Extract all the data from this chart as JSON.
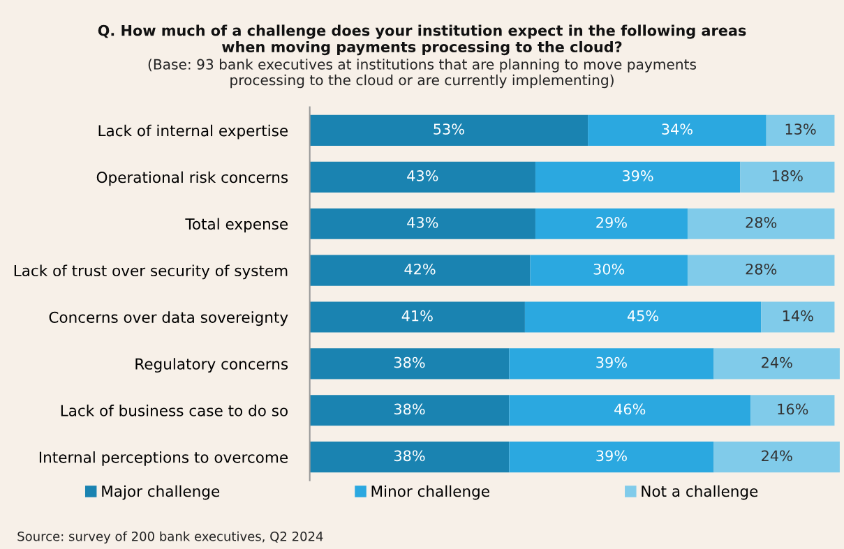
{
  "chart_data": {
    "type": "bar",
    "orientation": "horizontal",
    "stacked": true,
    "title": "Q. How much of a challenge does your institution expect in the following areas\nwhen moving payments processing to the cloud?",
    "subtitle": "(Base: 93 bank executives at institutions that are planning to move payments\nprocessing to the cloud or are currently implementing)",
    "categories": [
      "Lack of internal expertise",
      "Operational risk concerns",
      "Total expense",
      "Lack of trust over security of system",
      "Concerns over data sovereignty",
      "Regulatory concerns",
      "Lack of business case to do so",
      "Internal perceptions to overcome"
    ],
    "series": [
      {
        "name": "Major challenge",
        "color": "#1a83b1",
        "values": [
          53,
          43,
          43,
          42,
          41,
          38,
          38,
          38
        ],
        "value_labels": [
          "53%",
          "43%",
          "43%",
          "42%",
          "41%",
          "38%",
          "38%",
          "38%"
        ]
      },
      {
        "name": "Minor challenge",
        "color": "#2ba8e0",
        "values": [
          34,
          39,
          29,
          30,
          45,
          39,
          46,
          39
        ],
        "value_labels": [
          "34%",
          "39%",
          "29%",
          "30%",
          "45%",
          "39%",
          "46%",
          "39%"
        ]
      },
      {
        "name": "Not a challenge",
        "color": "#80cbea",
        "values": [
          13,
          18,
          28,
          28,
          14,
          24,
          16,
          24
        ],
        "value_labels": [
          "13%",
          "18%",
          "28%",
          "28%",
          "14%",
          "24%",
          "16%",
          "24%"
        ]
      }
    ],
    "legend": "bottom",
    "grid": false,
    "tick_labels": "y",
    "annotations": [
      "Source: survey of 200 bank executives, Q2 2024"
    ]
  }
}
